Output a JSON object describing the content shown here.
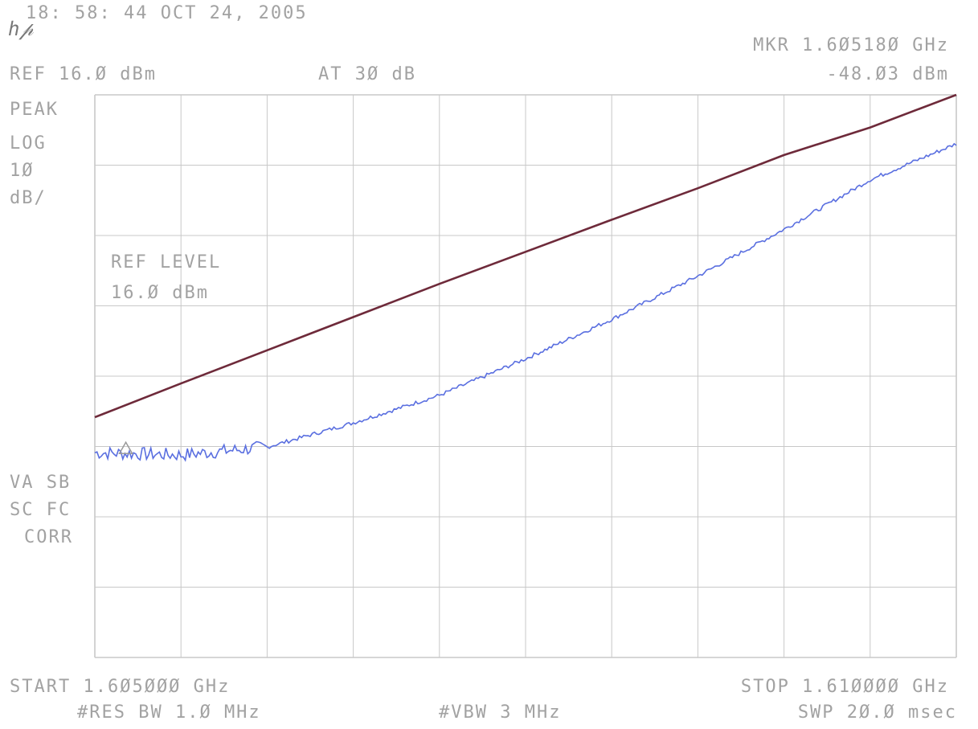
{
  "header": {
    "timestamp": "18: 58: 44 OCT 24, 2005",
    "logo": "hp",
    "ref": "REF 16.Ø dBm",
    "atten": "AT 3Ø dB",
    "marker_freq": "MKR 1.6Ø518Ø GHz",
    "marker_level": "-48.Ø3 dBm"
  },
  "left_panel": {
    "mode": "PEAK",
    "scale1": "LOG",
    "scale2": "1Ø",
    "scale3": "dB/",
    "annot1": "VA SB",
    "annot2": "SC FC",
    "annot3": "CORR"
  },
  "plot_annotation": {
    "line1": "REF LEVEL",
    "line2": "16.Ø dBm"
  },
  "footer": {
    "start": "START 1.6Ø5ØØØ GHz",
    "stop": "STOP 1.61ØØØØ GHz",
    "rbw": "#RES BW 1.Ø MHz",
    "vbw": "#VBW 3 MHz",
    "sweep": "SWP 2Ø.Ø msec"
  },
  "colors": {
    "grid": "#c8c8c8",
    "series_upper": "#6e2a3a",
    "series_lower": "#5a6fe0",
    "text": "#a2a2a2"
  },
  "chart_data": {
    "type": "line",
    "xlim": [
      1.605,
      1.61
    ],
    "ylim": [
      -84,
      16
    ],
    "x_unit": "GHz",
    "y_unit": "dBm",
    "grid": true,
    "marker": {
      "x": 1.60518,
      "y": -48.03
    },
    "series": [
      {
        "x": [
          1.605,
          1.6055,
          1.606,
          1.6065,
          1.607,
          1.6075,
          1.608,
          1.6085,
          1.609,
          1.6095,
          1.61
        ],
        "values": [
          -41.3,
          -35.3,
          -29.4,
          -23.5,
          -17.6,
          -11.9,
          -6.2,
          -0.6,
          5.3,
          10.2,
          16.0
        ]
      },
      {
        "x": [
          1.605,
          1.6055,
          1.606,
          1.6065,
          1.607,
          1.6075,
          1.608,
          1.6085,
          1.609,
          1.6095,
          1.61
        ],
        "values": [
          -47.6,
          -48.0,
          -46.6,
          -42.3,
          -37.4,
          -30.9,
          -23.9,
          -16.2,
          -7.9,
          0.9,
          7.3
        ]
      }
    ]
  }
}
